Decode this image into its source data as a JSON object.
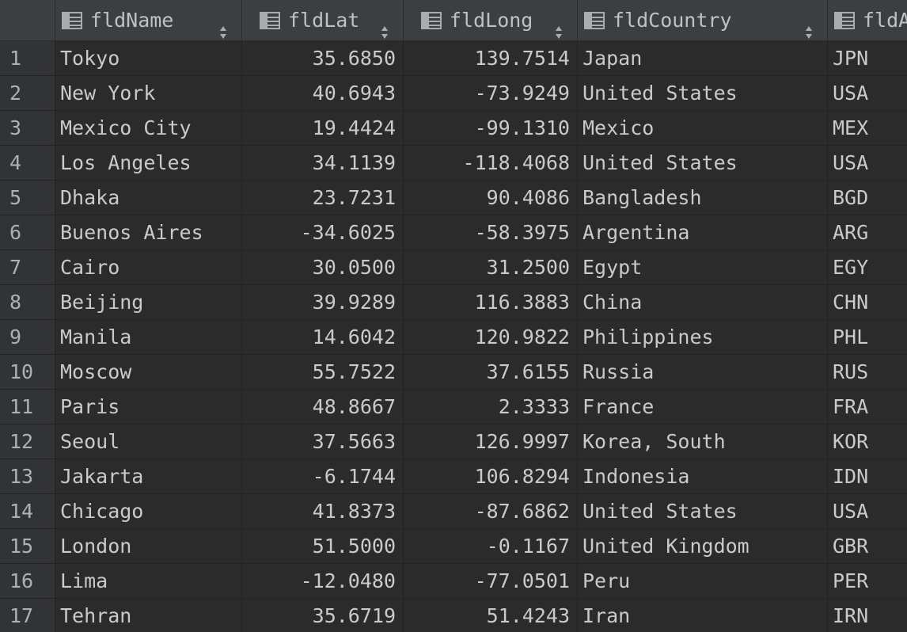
{
  "columns": [
    {
      "key": "fldName",
      "label": "fldName"
    },
    {
      "key": "fldLat",
      "label": "fldLat"
    },
    {
      "key": "fldLong",
      "label": "fldLong"
    },
    {
      "key": "fldCountry",
      "label": "fldCountry"
    },
    {
      "key": "fldA",
      "label": "fldA"
    }
  ],
  "icons": {
    "column": "table-column-icon",
    "sort": "sort-arrows-icon"
  },
  "rows": [
    {
      "n": "1",
      "name": "Tokyo",
      "lat": "35.6850",
      "long": "139.7514",
      "country": "Japan",
      "a": "JPN"
    },
    {
      "n": "2",
      "name": "New York",
      "lat": "40.6943",
      "long": "-73.9249",
      "country": "United States",
      "a": "USA"
    },
    {
      "n": "3",
      "name": "Mexico City",
      "lat": "19.4424",
      "long": "-99.1310",
      "country": "Mexico",
      "a": "MEX"
    },
    {
      "n": "4",
      "name": "Los Angeles",
      "lat": "34.1139",
      "long": "-118.4068",
      "country": "United States",
      "a": "USA"
    },
    {
      "n": "5",
      "name": "Dhaka",
      "lat": "23.7231",
      "long": "90.4086",
      "country": "Bangladesh",
      "a": "BGD"
    },
    {
      "n": "6",
      "name": "Buenos Aires",
      "lat": "-34.6025",
      "long": "-58.3975",
      "country": "Argentina",
      "a": "ARG"
    },
    {
      "n": "7",
      "name": "Cairo",
      "lat": "30.0500",
      "long": "31.2500",
      "country": "Egypt",
      "a": "EGY"
    },
    {
      "n": "8",
      "name": "Beijing",
      "lat": "39.9289",
      "long": "116.3883",
      "country": "China",
      "a": "CHN"
    },
    {
      "n": "9",
      "name": "Manila",
      "lat": "14.6042",
      "long": "120.9822",
      "country": "Philippines",
      "a": "PHL"
    },
    {
      "n": "10",
      "name": "Moscow",
      "lat": "55.7522",
      "long": "37.6155",
      "country": "Russia",
      "a": "RUS"
    },
    {
      "n": "11",
      "name": "Paris",
      "lat": "48.8667",
      "long": "2.3333",
      "country": "France",
      "a": "FRA"
    },
    {
      "n": "12",
      "name": "Seoul",
      "lat": "37.5663",
      "long": "126.9997",
      "country": "Korea, South",
      "a": "KOR"
    },
    {
      "n": "13",
      "name": "Jakarta",
      "lat": "-6.1744",
      "long": "106.8294",
      "country": "Indonesia",
      "a": "IDN"
    },
    {
      "n": "14",
      "name": "Chicago",
      "lat": "41.8373",
      "long": "-87.6862",
      "country": "United States",
      "a": "USA"
    },
    {
      "n": "15",
      "name": "London",
      "lat": "51.5000",
      "long": "-0.1167",
      "country": "United Kingdom",
      "a": "GBR"
    },
    {
      "n": "16",
      "name": "Lima",
      "lat": "-12.0480",
      "long": "-77.0501",
      "country": "Peru",
      "a": "PER"
    },
    {
      "n": "17",
      "name": "Tehran",
      "lat": "35.6719",
      "long": "51.4243",
      "country": "Iran",
      "a": "IRN"
    }
  ]
}
